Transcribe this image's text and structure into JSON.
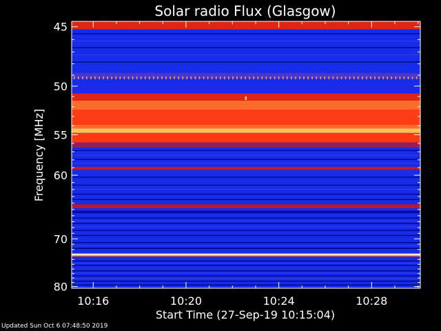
{
  "colors": {
    "background": "#000000",
    "text": "#ffffff",
    "axis": "#ffffff"
  },
  "footer": {
    "updated_text": "Updated Sun Oct  6 07:48:50 2019"
  },
  "chart_data": {
    "type": "heatmap",
    "title": "Solar radio Flux (Glasgow)",
    "xlabel": "Start Time (27-Sep-19 10:15:04)",
    "ylabel": "Frequency [MHz]",
    "x_range_minutes": [
      15.07,
      30.1
    ],
    "x_tick_values_minutes": [
      16,
      20,
      24,
      28
    ],
    "x_tick_labels": [
      "10:16",
      "10:20",
      "10:24",
      "10:28"
    ],
    "y_range_mhz": [
      44.6,
      80.4
    ],
    "y_scale": "reciprocal",
    "y_tick_values": [
      45,
      50,
      55,
      60,
      70,
      80
    ],
    "y_tick_labels": [
      "45",
      "50",
      "55",
      "60",
      "70",
      "80"
    ],
    "y_minor_tick_values": [
      46,
      47,
      48,
      49,
      51,
      52,
      53,
      54,
      56,
      57,
      58,
      59,
      61,
      62,
      63,
      64,
      65,
      66,
      67,
      68,
      69,
      71,
      72,
      73,
      74,
      75,
      76,
      77,
      78,
      79
    ],
    "colormap": [
      "#000070",
      "#0818d8",
      "#2846ff",
      "#7a1e88",
      "#c81818",
      "#ff3a14",
      "#ff7a2e",
      "#ffd060",
      "#fffbe0"
    ],
    "background_intensity": 0.18,
    "bands": [
      {
        "freq_from": 44.6,
        "freq_to": 45.2,
        "intensity": 0.55
      },
      {
        "freq_from": 48.8,
        "freq_to": 49.3,
        "intensity": 0.3
      },
      {
        "freq_from": 50.7,
        "freq_to": 51.4,
        "intensity": 0.55
      },
      {
        "freq_from": 51.4,
        "freq_to": 52.3,
        "intensity": 0.72
      },
      {
        "freq_from": 52.3,
        "freq_to": 53.9,
        "intensity": 0.63
      },
      {
        "freq_from": 53.9,
        "freq_to": 54.3,
        "intensity": 0.72
      },
      {
        "freq_from": 54.3,
        "freq_to": 54.8,
        "intensity": 0.85
      },
      {
        "freq_from": 54.8,
        "freq_to": 55.9,
        "intensity": 0.62
      },
      {
        "freq_from": 55.9,
        "freq_to": 56.5,
        "intensity": 0.42
      },
      {
        "freq_from": 58.9,
        "freq_to": 59.3,
        "intensity": 0.5
      },
      {
        "freq_from": 64.2,
        "freq_to": 64.8,
        "intensity": 0.48
      },
      {
        "freq_from": 65.2,
        "freq_to": 65.6,
        "intensity": 0.06
      },
      {
        "freq_from": 72.8,
        "freq_to": 73.2,
        "intensity": 0.95
      },
      {
        "freq_from": 73.2,
        "freq_to": 73.4,
        "intensity": 0.7
      }
    ],
    "dark_lines_mhz": [
      45.5,
      46.6,
      47.8,
      56.8,
      57.9,
      60.2,
      61.3,
      62.6,
      63.4,
      66.3,
      67.2,
      68.4,
      69.3,
      70.6,
      71.7,
      74.2,
      75.1,
      76.3,
      77.4,
      78.6,
      79.5
    ],
    "bright_lines_mhz": [
      46.1,
      47.2,
      57.4,
      58.4,
      61.9,
      66.8,
      67.8,
      71.2,
      74.7,
      76.8,
      78.1
    ],
    "periodic_dots": {
      "freq": 49.3,
      "intensity": 0.8,
      "first_minute": 15.18,
      "interval_minutes": 0.18
    },
    "spots": [
      {
        "minute": 22.58,
        "freq": 51.2,
        "intensity": 0.9
      }
    ]
  }
}
